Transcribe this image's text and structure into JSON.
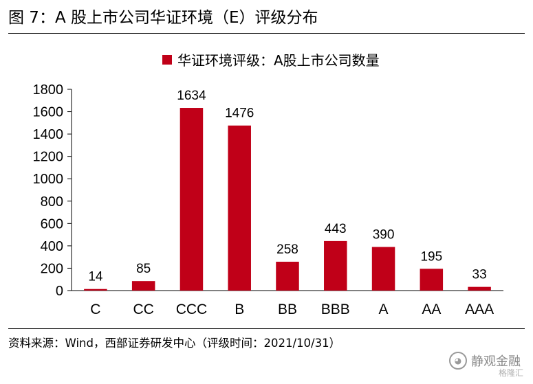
{
  "figure": {
    "title": "图 7：A 股上市公司华证环境（E）评级分布",
    "source": "资料来源：Wind，西部证券研发中心（评级时间：2021/10/31）",
    "watermark": "静观金融",
    "watermark_sub": "格隆汇"
  },
  "colors": {
    "bar": "#c00018",
    "axis": "#000000"
  },
  "chart_data": {
    "type": "bar",
    "title": "",
    "xlabel": "",
    "ylabel": "",
    "categories": [
      "C",
      "CC",
      "CCC",
      "B",
      "BB",
      "BBB",
      "A",
      "AA",
      "AAA"
    ],
    "series": [
      {
        "name": "华证环境评级：A股上市公司数量",
        "values": [
          14,
          85,
          1634,
          1476,
          258,
          443,
          390,
          195,
          33
        ]
      }
    ],
    "ylim": [
      0,
      1800
    ],
    "yticks": [
      0,
      200,
      400,
      600,
      800,
      1000,
      1200,
      1400,
      1600,
      1800
    ],
    "legend_position": "top-center",
    "grid": false,
    "data_labels": true
  }
}
